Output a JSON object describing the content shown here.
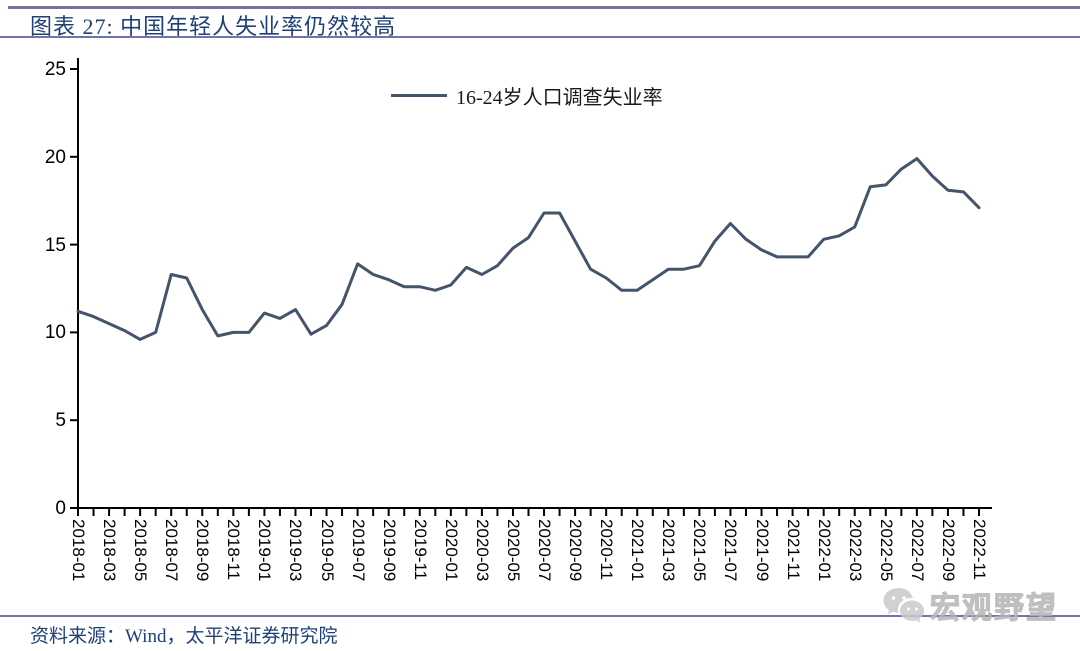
{
  "header": {
    "title": "图表 27: 中国年轻人失业率仍然较高"
  },
  "footer": {
    "source": "资料来源：Wind，太平洋证券研究院"
  },
  "watermark": {
    "icon": "wechat-icon",
    "label": "宏观野望"
  },
  "colors": {
    "accent_rule": "#7373A9",
    "title_text": "#1F4077",
    "series_line": "#44546A",
    "axis": "#000000",
    "watermark_gray": "#c6c6c6"
  },
  "chart_data": {
    "type": "line",
    "title": "图表 27: 中国年轻人失业率仍然较高",
    "xlabel": "",
    "ylabel": "",
    "ylim": [
      0,
      25
    ],
    "yticks": [
      0,
      5,
      10,
      15,
      20,
      25
    ],
    "grid": false,
    "legend_position": "top-center",
    "x_label_rotation": 90,
    "x_tick_label_interval": 2,
    "x": [
      "2018-01",
      "2018-02",
      "2018-03",
      "2018-04",
      "2018-05",
      "2018-06",
      "2018-07",
      "2018-08",
      "2018-09",
      "2018-10",
      "2018-11",
      "2018-12",
      "2019-01",
      "2019-02",
      "2019-03",
      "2019-04",
      "2019-05",
      "2019-06",
      "2019-07",
      "2019-08",
      "2019-09",
      "2019-10",
      "2019-11",
      "2019-12",
      "2020-01",
      "2020-02",
      "2020-03",
      "2020-04",
      "2020-05",
      "2020-06",
      "2020-07",
      "2020-08",
      "2020-09",
      "2020-10",
      "2020-11",
      "2020-12",
      "2021-01",
      "2021-02",
      "2021-03",
      "2021-04",
      "2021-05",
      "2021-06",
      "2021-07",
      "2021-08",
      "2021-09",
      "2021-10",
      "2021-11",
      "2021-12",
      "2022-01",
      "2022-02",
      "2022-03",
      "2022-04",
      "2022-05",
      "2022-06",
      "2022-07",
      "2022-08",
      "2022-09",
      "2022-10",
      "2022-11"
    ],
    "series": [
      {
        "name": "16-24岁人口调查失业率",
        "color": "#44546A",
        "values": [
          11.2,
          10.9,
          10.5,
          10.1,
          9.6,
          10.0,
          13.3,
          13.1,
          11.3,
          9.8,
          10.0,
          10.0,
          11.1,
          10.8,
          11.3,
          9.9,
          10.4,
          11.6,
          13.9,
          13.3,
          13.0,
          12.6,
          12.6,
          12.4,
          12.7,
          13.7,
          13.3,
          13.8,
          14.8,
          15.4,
          16.8,
          16.8,
          15.2,
          13.6,
          13.1,
          12.4,
          12.4,
          13.0,
          13.6,
          13.6,
          13.8,
          15.2,
          16.2,
          15.3,
          14.7,
          14.3,
          14.3,
          14.3,
          15.3,
          15.5,
          16.0,
          18.3,
          18.4,
          19.3,
          19.9,
          18.9,
          18.1,
          18.0,
          17.1
        ]
      }
    ]
  }
}
